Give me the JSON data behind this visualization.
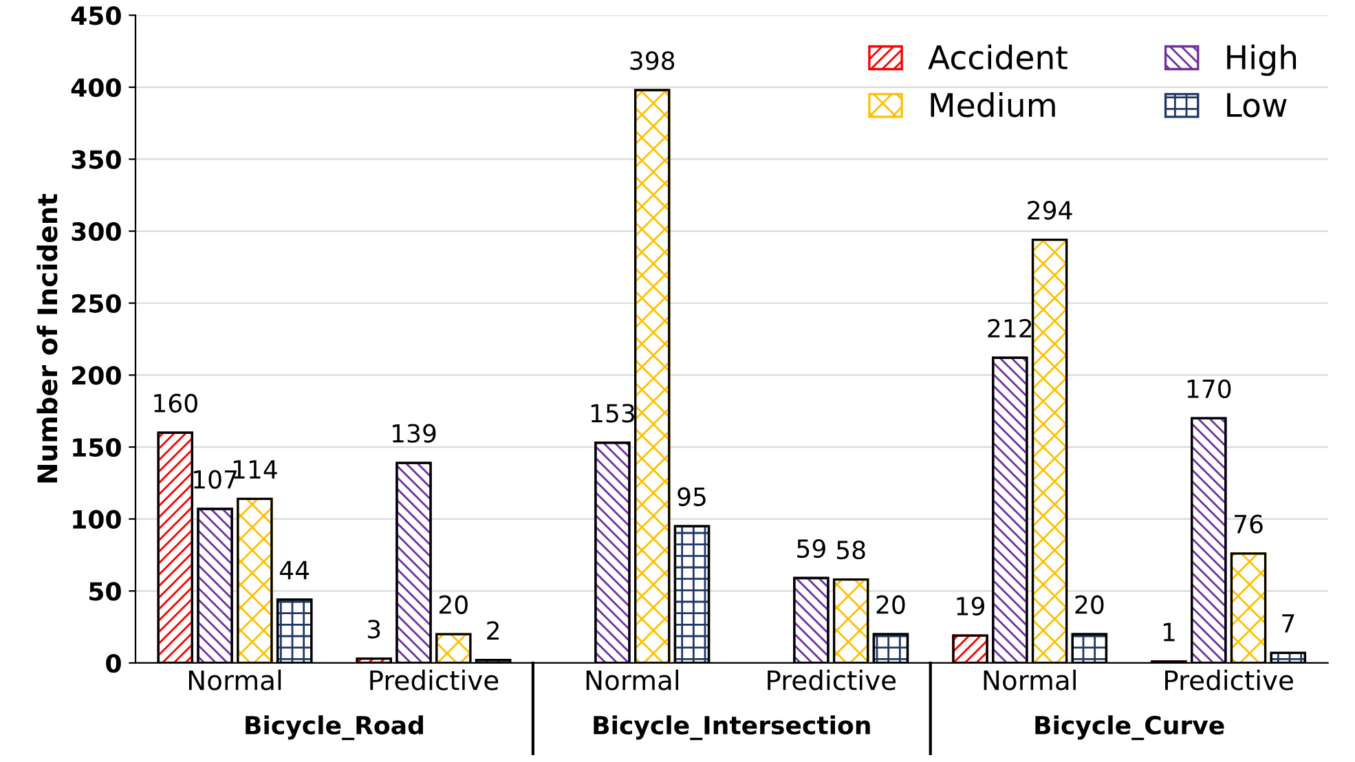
{
  "chart_data": {
    "type": "bar",
    "ylabel": "Number of Incident",
    "categories": [
      "Normal",
      "Predictive",
      "Normal",
      "Predictive",
      "Normal",
      "Predictive"
    ],
    "annotations": [
      "Bicycle_Road",
      "Bicycle_Intersection",
      "Bicycle_Curve"
    ],
    "series": [
      {
        "name": "Accident",
        "color": "#ff0000",
        "values": [
          160,
          3,
          null,
          null,
          19,
          1
        ]
      },
      {
        "name": "High",
        "color": "#7030a0",
        "values": [
          107,
          139,
          153,
          59,
          212,
          170
        ]
      },
      {
        "name": "Medium",
        "color": "#ffc000",
        "values": [
          114,
          20,
          398,
          58,
          294,
          76
        ]
      },
      {
        "name": "Low",
        "color": "#1f3864",
        "values": [
          44,
          2,
          95,
          20,
          20,
          7
        ]
      }
    ],
    "ylim": [
      0,
      450
    ],
    "yticks": [
      0,
      50,
      100,
      150,
      200,
      250,
      300,
      350,
      400,
      450
    ],
    "grid": "y",
    "legend": "top right",
    "data_labels": true
  }
}
